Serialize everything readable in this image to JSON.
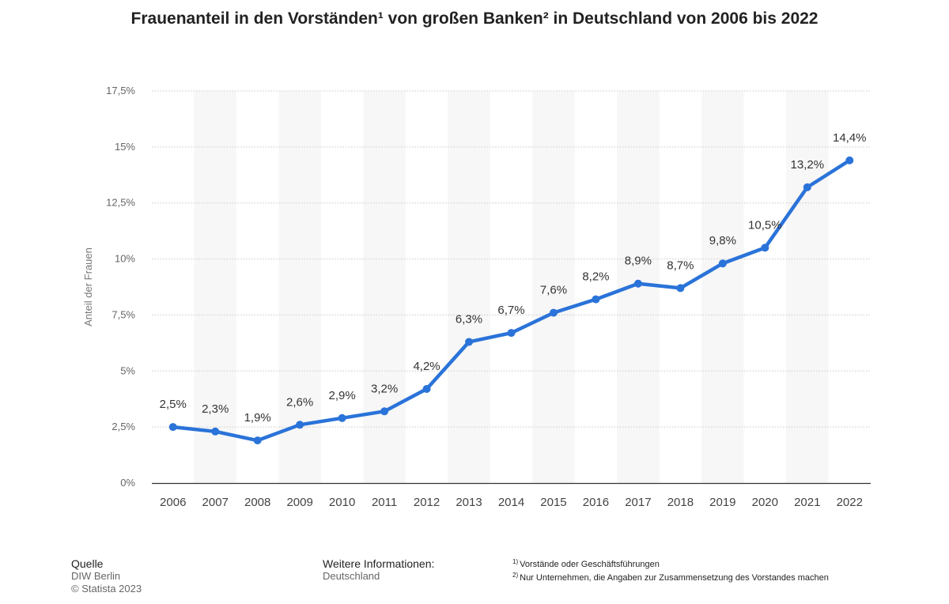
{
  "title": "Frauenanteil in den Vorständen¹ von großen Banken² in Deutschland von 2006 bis 2022",
  "chart_data": {
    "type": "line",
    "title": "Frauenanteil in den Vorständen¹ von großen Banken² in Deutschland von 2006 bis 2022",
    "xlabel": "",
    "ylabel": "Anteil der Frauen",
    "categories": [
      "2006",
      "2007",
      "2008",
      "2009",
      "2010",
      "2011",
      "2012",
      "2013",
      "2014",
      "2015",
      "2016",
      "2017",
      "2018",
      "2019",
      "2020",
      "2021",
      "2022"
    ],
    "series": [
      {
        "name": "Anteil der Frauen",
        "values": [
          2.5,
          2.3,
          1.9,
          2.6,
          2.9,
          3.2,
          4.2,
          6.3,
          6.7,
          7.6,
          8.2,
          8.9,
          8.7,
          9.8,
          10.5,
          13.2,
          14.4
        ],
        "labels": [
          "2,5%",
          "2,3%",
          "1,9%",
          "2,6%",
          "2,9%",
          "3,2%",
          "4,2%",
          "6,3%",
          "6,7%",
          "7,6%",
          "8,2%",
          "8,9%",
          "8,7%",
          "9,8%",
          "10,5%",
          "13,2%",
          "14,4%"
        ]
      }
    ],
    "ylim": [
      0,
      17.5
    ],
    "yticks": [
      0,
      2.5,
      5,
      7.5,
      10,
      12.5,
      15,
      17.5
    ],
    "ytick_labels": [
      "0%",
      "2,5%",
      "5%",
      "7,5%",
      "10%",
      "12,5%",
      "15%",
      "17,5%"
    ],
    "grid": true,
    "line_color": "#2a73d9"
  },
  "footer": {
    "source_heading": "Quelle",
    "source": "DIW Berlin",
    "copyright": "© Statista 2023",
    "more_info_heading": "Weitere Informationen:",
    "more_info": "Deutschland",
    "note1_mark": "1)",
    "note1": "Vorstände oder Geschäftsführungen",
    "note2_mark": "2)",
    "note2": "Nur Unternehmen, die Angaben zur Zusammensetzung des Vorstandes machen"
  }
}
